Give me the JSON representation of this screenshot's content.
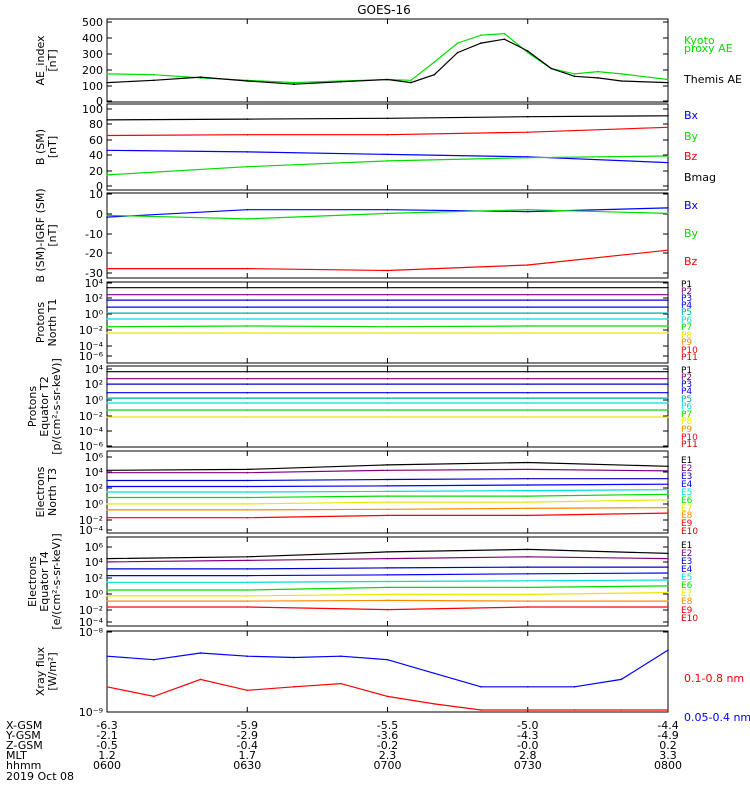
{
  "title": "GOES-16",
  "colors": {
    "black": "#000000",
    "blue": "#0000ff",
    "green": "#00dd00",
    "red": "#ff0000",
    "purple": "#800080",
    "navy": "#0000cc",
    "teal": "#00aaaa",
    "cyan": "#00dddd",
    "yellow": "#e8e800",
    "orange": "#ff8800",
    "darkred": "#cc0000"
  },
  "panels": [
    {
      "ylabel": [
        "AE_index",
        "[nT]"
      ],
      "ticks": [
        "0",
        "100",
        "200",
        "300",
        "400",
        "500"
      ],
      "legend": [
        {
          "text": "Kyoto",
          "color": "#00dd00"
        },
        {
          "text": "proxy AE",
          "color": "#00dd00"
        },
        {
          "text": "Themis AE",
          "color": "#000000"
        }
      ]
    },
    {
      "ylabel": [
        "B (SM)",
        "[nT]"
      ],
      "ticks": [
        "0",
        "20",
        "40",
        "60",
        "80",
        "100"
      ],
      "legend": [
        {
          "text": "Bx",
          "color": "#0000ff"
        },
        {
          "text": "By",
          "color": "#00dd00"
        },
        {
          "text": "Bz",
          "color": "#ff0000"
        },
        {
          "text": "Bmag",
          "color": "#000000"
        }
      ]
    },
    {
      "ylabel": [
        "B (SM)-IGRF (SM)",
        "[nT]"
      ],
      "ticks": [
        "-30",
        "-20",
        "-10",
        "0",
        "10"
      ],
      "legend": [
        {
          "text": "Bx",
          "color": "#0000ff"
        },
        {
          "text": "By",
          "color": "#00dd00"
        },
        {
          "text": "Bz",
          "color": "#ff0000"
        }
      ]
    },
    {
      "ylabel": [
        "Protons",
        "North T1"
      ],
      "ticks": [
        "10⁻⁶",
        "10⁻⁴",
        "10⁻²",
        "10⁰",
        "10²",
        "10⁴"
      ],
      "legend": [
        {
          "text": "P1",
          "color": "#000000"
        },
        {
          "text": "P2",
          "color": "#800080"
        },
        {
          "text": "P3",
          "color": "#0000cc"
        },
        {
          "text": "P4",
          "color": "#0000ff"
        },
        {
          "text": "P5",
          "color": "#00aaaa"
        },
        {
          "text": "P6",
          "color": "#00dddd"
        },
        {
          "text": "P7",
          "color": "#00dd00"
        },
        {
          "text": "P8",
          "color": "#e8e800"
        },
        {
          "text": "P9",
          "color": "#ff8800"
        },
        {
          "text": "P10",
          "color": "#ff0000"
        },
        {
          "text": "P11",
          "color": "#cc0000"
        }
      ]
    },
    {
      "ylabel": [
        "Protons",
        "Equator T2",
        "[p/(cm²-s-sr-keV)]"
      ],
      "ticks": [
        "10⁻⁶",
        "10⁻⁴",
        "10⁻²",
        "10⁰",
        "10²",
        "10⁴"
      ],
      "legend": [
        {
          "text": "P1",
          "color": "#000000"
        },
        {
          "text": "P2",
          "color": "#800080"
        },
        {
          "text": "P3",
          "color": "#0000cc"
        },
        {
          "text": "P4",
          "color": "#0000ff"
        },
        {
          "text": "P5",
          "color": "#00aaaa"
        },
        {
          "text": "P6",
          "color": "#00dddd"
        },
        {
          "text": "P7",
          "color": "#00dd00"
        },
        {
          "text": "P8",
          "color": "#e8e800"
        },
        {
          "text": "P9",
          "color": "#ff8800"
        },
        {
          "text": "P10",
          "color": "#ff0000"
        },
        {
          "text": "P11",
          "color": "#cc0000"
        }
      ]
    },
    {
      "ylabel": [
        "Electrons",
        "North T3"
      ],
      "ticks": [
        "10⁻⁴",
        "10⁻²",
        "10⁰",
        "10²",
        "10⁴",
        "10⁶"
      ],
      "legend": [
        {
          "text": "E1",
          "color": "#000000"
        },
        {
          "text": "E2",
          "color": "#800080"
        },
        {
          "text": "E3",
          "color": "#0000cc"
        },
        {
          "text": "E4",
          "color": "#0000ff"
        },
        {
          "text": "E5",
          "color": "#00dddd"
        },
        {
          "text": "E6",
          "color": "#00dd00"
        },
        {
          "text": "E7",
          "color": "#e8e800"
        },
        {
          "text": "E8",
          "color": "#ff8800"
        },
        {
          "text": "E9",
          "color": "#ff0000"
        },
        {
          "text": "E10",
          "color": "#cc0000"
        }
      ]
    },
    {
      "ylabel": [
        "Electrons",
        "Equator T4",
        "[e/(cm²-s-sr-keV)]"
      ],
      "ticks": [
        "10⁻⁴",
        "10⁻²",
        "10⁰",
        "10²",
        "10⁴",
        "10⁶"
      ],
      "legend": [
        {
          "text": "E1",
          "color": "#000000"
        },
        {
          "text": "E2",
          "color": "#800080"
        },
        {
          "text": "E3",
          "color": "#0000cc"
        },
        {
          "text": "E4",
          "color": "#0000ff"
        },
        {
          "text": "E5",
          "color": "#00dddd"
        },
        {
          "text": "E6",
          "color": "#00dd00"
        },
        {
          "text": "E7",
          "color": "#e8e800"
        },
        {
          "text": "E8",
          "color": "#ff8800"
        },
        {
          "text": "E9",
          "color": "#ff0000"
        },
        {
          "text": "E10",
          "color": "#cc0000"
        }
      ]
    },
    {
      "ylabel": [
        "Xray flux",
        "[W/m²]"
      ],
      "ticks": [
        "10⁻⁹",
        "10⁻⁸"
      ],
      "legend": [
        {
          "text": "0.1-0.8 nm",
          "color": "#ff0000"
        },
        {
          "text": "0.05-0.4 nm",
          "color": "#0000ff"
        }
      ]
    }
  ],
  "orbit_table": {
    "rows": [
      {
        "label": "X-GSM",
        "values": [
          "-6.3",
          "-5.9",
          "-5.5",
          "-5.0",
          "-4.4"
        ]
      },
      {
        "label": "Y-GSM",
        "values": [
          "-2.1",
          "-2.9",
          "-3.6",
          "-4.3",
          "-4.9"
        ]
      },
      {
        "label": "Z-GSM",
        "values": [
          "-0.5",
          "-0.4",
          "-0.2",
          "-0.0",
          "0.2"
        ]
      },
      {
        "label": "MLT",
        "values": [
          "1.2",
          "1.7",
          "2.3",
          "2.8",
          "3.3"
        ]
      },
      {
        "label": "hhmm",
        "values": [
          "0600",
          "0630",
          "0700",
          "0730",
          "0800"
        ]
      }
    ],
    "date": "2019 Oct 08"
  },
  "chart_data": [
    {
      "type": "line",
      "title": "GOES-16",
      "ylabel": "AE_index [nT]",
      "ylim": [
        0,
        500
      ],
      "x": [
        "0600",
        "0610",
        "0620",
        "0630",
        "0640",
        "0650",
        "0700",
        "0705",
        "0710",
        "0715",
        "0720",
        "0725",
        "0730",
        "0735",
        "0740",
        "0745",
        "0750",
        "0800"
      ],
      "series": [
        {
          "name": "Kyoto proxy AE",
          "values": [
            165,
            160,
            140,
            125,
            110,
            120,
            130,
            125,
            240,
            360,
            410,
            420,
            300,
            200,
            165,
            180,
            165,
            130
          ]
        },
        {
          "name": "Themis AE",
          "values": [
            110,
            125,
            145,
            120,
            100,
            115,
            130,
            110,
            160,
            300,
            360,
            385,
            310,
            200,
            150,
            140,
            120,
            110
          ]
        }
      ]
    },
    {
      "type": "line",
      "ylabel": "B (SM) [nT]",
      "ylim": [
        0,
        100
      ],
      "x": [
        "0600",
        "0630",
        "0700",
        "0730",
        "0800"
      ],
      "series": [
        {
          "name": "Bx",
          "values": [
            46,
            44,
            41,
            38,
            31
          ]
        },
        {
          "name": "By",
          "values": [
            16,
            26,
            33,
            37,
            39
          ]
        },
        {
          "name": "Bz",
          "values": [
            64,
            65,
            65,
            68,
            74
          ]
        },
        {
          "name": "Bmag",
          "values": [
            83,
            84,
            85,
            87,
            88
          ]
        }
      ]
    },
    {
      "type": "line",
      "ylabel": "B (SM)-IGRF (SM) [nT]",
      "ylim": [
        -32,
        12
      ],
      "x": [
        "0600",
        "0630",
        "0700",
        "0730",
        "0800"
      ],
      "series": [
        {
          "name": "Bx",
          "values": [
            0,
            4,
            4,
            3,
            5
          ]
        },
        {
          "name": "By",
          "values": [
            1,
            -1,
            2,
            4,
            2
          ]
        },
        {
          "name": "Bz",
          "values": [
            -28,
            -28,
            -29,
            -26,
            -18
          ]
        }
      ]
    },
    {
      "type": "line",
      "ylabel": "Protons North T1",
      "ylim": [
        1e-07,
        10000.0
      ],
      "log_scale": true,
      "x": [
        "0600",
        "0630",
        "0700",
        "0730",
        "0800"
      ],
      "series": [
        {
          "name": "P1",
          "values": [
            3000,
            3000,
            3000,
            3000,
            3000
          ]
        },
        {
          "name": "P2",
          "values": [
            300,
            300,
            300,
            300,
            300
          ]
        },
        {
          "name": "P3",
          "values": [
            50,
            50,
            50,
            50,
            50
          ]
        },
        {
          "name": "P4",
          "values": [
            5,
            5,
            5,
            5,
            5
          ]
        },
        {
          "name": "P5",
          "values": [
            0.7,
            0.7,
            0.7,
            0.7,
            0.7
          ]
        },
        {
          "name": "P6",
          "values": [
            0.1,
            0.1,
            0.1,
            0.1,
            0.1
          ]
        },
        {
          "name": "P7",
          "values": [
            0.008,
            0.01,
            0.008,
            0.01,
            0.01
          ]
        },
        {
          "name": "P8",
          "values": [
            0.001,
            0.001,
            0.001,
            0.001,
            0.001
          ]
        }
      ]
    },
    {
      "type": "line",
      "ylabel": "Protons Equator T2 [p/(cm²-s-sr-keV)]",
      "ylim": [
        1e-07,
        10000.0
      ],
      "log_scale": true,
      "x": [
        "0600",
        "0630",
        "0700",
        "0730",
        "0800"
      ],
      "series": [
        {
          "name": "P1",
          "values": [
            3000,
            3000,
            3000,
            3000,
            3000
          ]
        },
        {
          "name": "P2",
          "values": [
            300,
            300,
            300,
            300,
            300
          ]
        },
        {
          "name": "P3",
          "values": [
            50,
            50,
            50,
            50,
            50
          ]
        },
        {
          "name": "P4",
          "values": [
            3,
            3,
            3,
            3,
            3
          ]
        },
        {
          "name": "P5",
          "values": [
            0.5,
            0.5,
            0.5,
            0.5,
            0.5
          ]
        },
        {
          "name": "P6",
          "values": [
            0.1,
            0.1,
            0.1,
            0.1,
            0.1
          ]
        },
        {
          "name": "P7",
          "values": [
            0.01,
            0.01,
            0.01,
            0.01,
            0.01
          ]
        },
        {
          "name": "P8",
          "values": [
            0.001,
            0.001,
            0.001,
            0.001,
            0.001
          ]
        }
      ]
    },
    {
      "type": "line",
      "ylabel": "Electrons North T3",
      "ylim": [
        0.0001,
        1000000.0
      ],
      "log_scale": true,
      "x": [
        "0600",
        "0630",
        "0700",
        "0730",
        "0800"
      ],
      "series": [
        {
          "name": "E1",
          "values": [
            6000,
            8000,
            30000,
            60000,
            20000
          ]
        },
        {
          "name": "E2",
          "values": [
            3000,
            3000,
            6000,
            8000,
            5000
          ]
        },
        {
          "name": "E3",
          "values": [
            300,
            300,
            400,
            500,
            500
          ]
        },
        {
          "name": "E4",
          "values": [
            50,
            50,
            60,
            80,
            100
          ]
        },
        {
          "name": "E5",
          "values": [
            10,
            10,
            12,
            15,
            20
          ]
        },
        {
          "name": "E6",
          "values": [
            2,
            2,
            3,
            3,
            5
          ]
        },
        {
          "name": "E7",
          "values": [
            0.3,
            0.3,
            0.5,
            0.5,
            1
          ]
        },
        {
          "name": "E8",
          "values": [
            0.05,
            0.05,
            0.06,
            0.08,
            0.1
          ]
        },
        {
          "name": "E9",
          "values": [
            0.005,
            0.005,
            0.01,
            0.01,
            0.02
          ]
        }
      ]
    },
    {
      "type": "line",
      "ylabel": "Electrons Equator T4 [e/(cm²-s-sr-keV)]",
      "ylim": [
        0.0001,
        1000000.0
      ],
      "log_scale": true,
      "x": [
        "0600",
        "0630",
        "0700",
        "0730",
        "0800"
      ],
      "series": [
        {
          "name": "E1",
          "values": [
            5000,
            8000,
            30000,
            60000,
            20000
          ]
        },
        {
          "name": "E2",
          "values": [
            2000,
            3000,
            5000,
            8000,
            5000
          ]
        },
        {
          "name": "E3",
          "values": [
            300,
            300,
            400,
            500,
            500
          ]
        },
        {
          "name": "E4",
          "values": [
            50,
            50,
            60,
            80,
            100
          ]
        },
        {
          "name": "E5",
          "values": [
            8,
            8,
            10,
            12,
            15
          ]
        },
        {
          "name": "E6",
          "values": [
            1,
            1,
            2,
            2,
            3
          ]
        },
        {
          "name": "E7",
          "values": [
            0.2,
            0.2,
            0.3,
            0.3,
            0.5
          ]
        },
        {
          "name": "E8",
          "values": [
            0.05,
            0.05,
            0.06,
            0.05,
            0.05
          ]
        },
        {
          "name": "E9",
          "values": [
            0.01,
            0.01,
            0.005,
            0.01,
            0.01
          ]
        }
      ]
    },
    {
      "type": "line",
      "ylabel": "Xray flux [W/m²]",
      "ylim": [
        1e-09,
        1e-08
      ],
      "log_scale": true,
      "x": [
        "0600",
        "0610",
        "0620",
        "0630",
        "0640",
        "0650",
        "0700",
        "0710",
        "0720",
        "0730",
        "0740",
        "0750",
        "0800"
      ],
      "series": [
        {
          "name": "0.1-0.8 nm",
          "values": [
            2e-09,
            1.5e-09,
            2.5e-09,
            1.8e-09,
            2e-09,
            2.2e-09,
            1.5e-09,
            1.2e-09,
            1e-09,
            1e-09,
            1e-09,
            1e-09,
            1e-09
          ]
        },
        {
          "name": "0.05-0.4 nm",
          "values": [
            5e-09,
            4.5e-09,
            5.5e-09,
            5e-09,
            4.8e-09,
            5e-09,
            4.5e-09,
            3e-09,
            2e-09,
            2e-09,
            2e-09,
            2.5e-09,
            6e-09
          ]
        }
      ]
    }
  ]
}
